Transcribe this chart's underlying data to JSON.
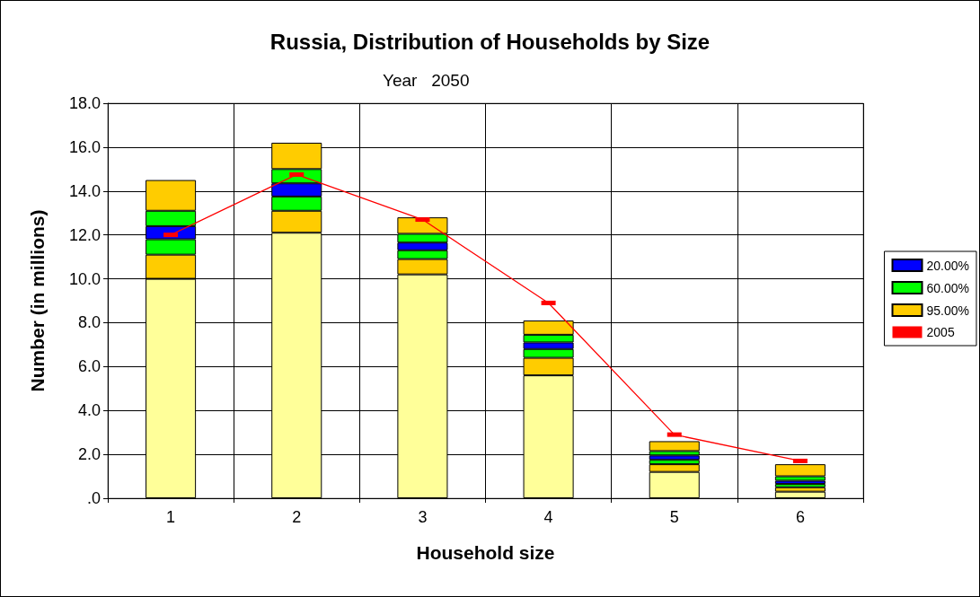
{
  "chart_data": {
    "type": "bar",
    "title": "Russia, Distribution of Households by Size",
    "subtitle": "Year   2050",
    "xlabel": "Household size",
    "ylabel": "Number (in millions)",
    "categories": [
      "1",
      "2",
      "3",
      "4",
      "5",
      "6"
    ],
    "stacked": true,
    "series": [
      {
        "color": "#ffff99",
        "values": [
          10.0,
          12.1,
          10.2,
          5.6,
          1.2,
          0.3
        ]
      },
      {
        "color": "#ffcc00",
        "values": [
          1.1,
          1.0,
          0.7,
          0.8,
          0.35,
          0.2
        ]
      },
      {
        "color": "#00ff00",
        "values": [
          0.7,
          0.65,
          0.4,
          0.4,
          0.2,
          0.15
        ]
      },
      {
        "name": "20.00%",
        "color": "#0000ff",
        "values": [
          0.6,
          0.6,
          0.35,
          0.3,
          0.2,
          0.15
        ]
      },
      {
        "name": "60.00%",
        "color": "#00ff00",
        "values": [
          0.7,
          0.65,
          0.4,
          0.35,
          0.2,
          0.2
        ]
      },
      {
        "name": "95.00%",
        "color": "#ffcc00",
        "values": [
          1.4,
          1.2,
          0.75,
          0.65,
          0.45,
          0.55
        ]
      },
      {
        "name": "2005",
        "type": "line",
        "color": "#ff0000",
        "marker": "square",
        "line_style": "solid",
        "values": [
          12.0,
          14.75,
          12.7,
          8.9,
          2.9,
          1.7
        ]
      }
    ],
    "ylim": [
      0,
      18
    ],
    "yticks": [
      {
        "value": 0,
        "label": ".0"
      },
      {
        "value": 2,
        "label": "2.0"
      },
      {
        "value": 4,
        "label": "4.0"
      },
      {
        "value": 6,
        "label": "6.0"
      },
      {
        "value": 8,
        "label": "8.0"
      },
      {
        "value": 10,
        "label": "10.0"
      },
      {
        "value": 12,
        "label": "12.0"
      },
      {
        "value": 14,
        "label": "14.0"
      },
      {
        "value": 16,
        "label": "16.0"
      },
      {
        "value": 18,
        "label": "18.0"
      }
    ],
    "grid": true,
    "legend": "right"
  }
}
